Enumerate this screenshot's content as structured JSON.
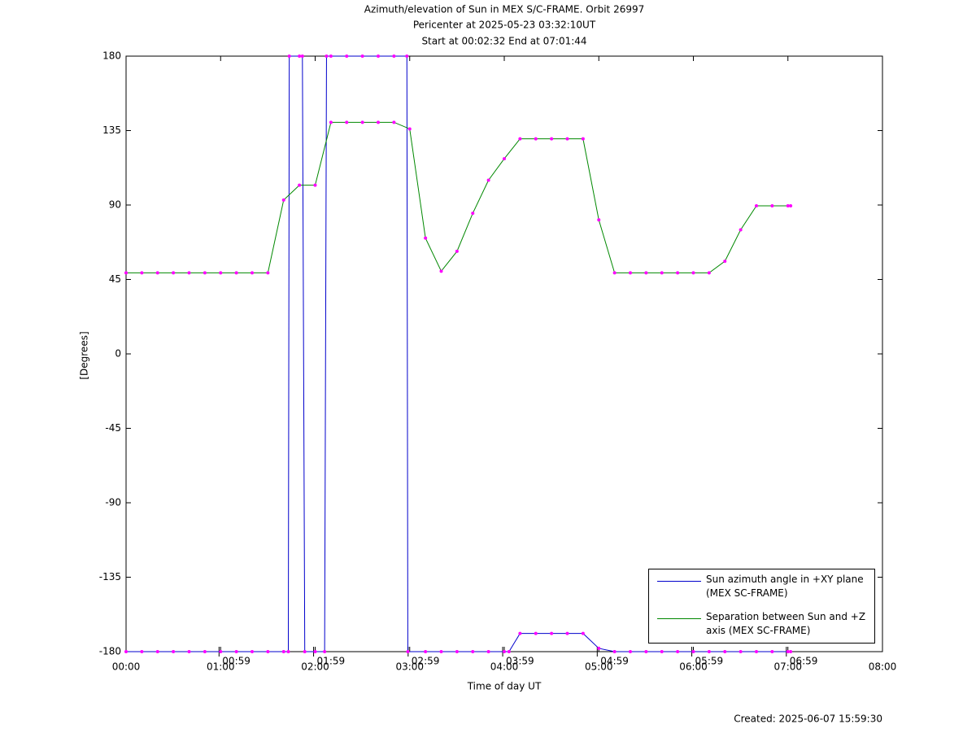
{
  "chart_data": {
    "type": "line",
    "title": "Azimuth/elevation of Sun in MEX S/C-FRAME.  Orbit 26997",
    "subtitle": "Pericenter at 2025-05-23 03:32:10UT",
    "subtitle2": "Start at 00:02:32 End at 07:01:44",
    "x_label": "Time of day UT",
    "y_label": "[Degrees]",
    "footer": "Created: 2025-06-07 15:59:30",
    "xlim": [
      0,
      8
    ],
    "xticks": [
      {
        "value": 0,
        "label": "00:00"
      },
      {
        "value": 1,
        "label": "01:00"
      },
      {
        "value": 2,
        "label": "02:00"
      },
      {
        "value": 3,
        "label": "03:00"
      },
      {
        "value": 4,
        "label": "04:00"
      },
      {
        "value": 5,
        "label": "05:00"
      },
      {
        "value": 6,
        "label": "06:00"
      },
      {
        "value": 7,
        "label": "07:00"
      },
      {
        "value": 8,
        "label": "08:00"
      }
    ],
    "minor_ticks": [
      {
        "value": 0.9833,
        "label": "00:59"
      },
      {
        "value": 1.9833,
        "label": "01:59"
      },
      {
        "value": 2.9833,
        "label": "02:59"
      },
      {
        "value": 3.9833,
        "label": "03:59"
      },
      {
        "value": 4.9833,
        "label": "04:59"
      },
      {
        "value": 5.9833,
        "label": "05:59"
      },
      {
        "value": 6.9833,
        "label": "06:59"
      }
    ],
    "ylim": [
      -180,
      180
    ],
    "yticks": [
      -180,
      -135,
      -90,
      -45,
      0,
      45,
      90,
      135,
      180
    ],
    "marker_color": "#ff00ff",
    "series": [
      {
        "name": "Sun azimuth angle in +XY plane (MEX SC-FRAME)",
        "color": "#0000cc",
        "x": [
          0,
          0.1667,
          0.3333,
          0.5,
          0.6667,
          0.8333,
          1,
          1.1667,
          1.3333,
          1.5,
          1.6667,
          1.716,
          1.726,
          1.8333,
          1.865,
          1.89,
          2,
          2.1,
          2.12,
          2.1667,
          2.3333,
          2.5,
          2.6667,
          2.8333,
          2.97,
          2.98,
          3.1667,
          3.3333,
          3.5,
          3.6667,
          3.8333,
          4,
          4.05,
          4.1667,
          4.3333,
          4.5,
          4.6667,
          4.8333,
          5,
          5.1667,
          5.3333,
          5.5,
          5.6667,
          5.8333,
          6,
          6.1667,
          6.3333,
          6.5,
          6.6667,
          6.8333,
          7,
          7.029
        ],
        "values": [
          -180,
          -180,
          -180,
          -180,
          -180,
          -180,
          -180,
          -180,
          -180,
          -180,
          -180,
          -180,
          180,
          180,
          180,
          -180,
          -180,
          -180,
          180,
          180,
          180,
          180,
          180,
          180,
          180,
          -180,
          -180,
          -180,
          -180,
          -180,
          -180,
          -180,
          -180,
          -169,
          -169,
          -169,
          -169,
          -169,
          -178,
          -180,
          -180,
          -180,
          -180,
          -180,
          -180,
          -180,
          -180,
          -180,
          -180,
          -180,
          -180,
          -180
        ]
      },
      {
        "name": "Separation between Sun and +Z axis (MEX SC-FRAME)",
        "color": "#008800",
        "x": [
          0,
          0.1667,
          0.3333,
          0.5,
          0.6667,
          0.8333,
          1,
          1.1667,
          1.3333,
          1.5,
          1.6667,
          1.8333,
          2,
          2.1667,
          2.3333,
          2.5,
          2.6667,
          2.8333,
          3,
          3.1667,
          3.3333,
          3.5,
          3.6667,
          3.8333,
          4,
          4.1667,
          4.3333,
          4.5,
          4.6667,
          4.8333,
          5,
          5.1667,
          5.3333,
          5.5,
          5.6667,
          5.8333,
          6,
          6.1667,
          6.3333,
          6.5,
          6.6667,
          6.8333,
          7,
          7.029
        ],
        "values": [
          49,
          49,
          49,
          49,
          49,
          49,
          49,
          49,
          49,
          49,
          93,
          102,
          102,
          140,
          140,
          140,
          140,
          140,
          136,
          70,
          50,
          62,
          85,
          105,
          118,
          130,
          130,
          130,
          130,
          130,
          81,
          49,
          49,
          49,
          49,
          49,
          49,
          49,
          56,
          75,
          89.5,
          89.5,
          89.5,
          89.5
        ]
      }
    ]
  }
}
